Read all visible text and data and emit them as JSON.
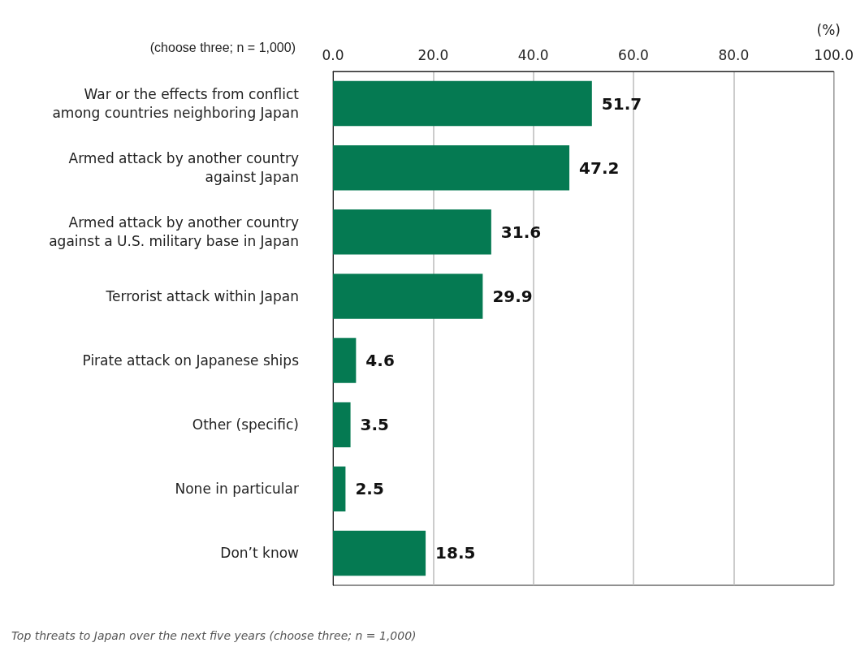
{
  "chart_data": {
    "type": "bar",
    "orientation": "horizontal",
    "categories": [
      "War or the effects from conflict\namong countries neighboring Japan",
      "Armed attack by another country\nagainst Japan",
      "Armed attack by another country\nagainst a U.S. military base in Japan",
      "Terrorist attack within Japan",
      "Pirate attack on Japanese ships",
      "Other (specific)",
      "None in particular",
      "Don’t know"
    ],
    "values": [
      51.7,
      47.2,
      31.6,
      29.9,
      4.6,
      3.5,
      2.5,
      18.5
    ],
    "color": "#057a52",
    "xlim": [
      0,
      100
    ],
    "xticks": [
      {
        "value": 0,
        "label": "0.0"
      },
      {
        "value": 20,
        "label": "20.0"
      },
      {
        "value": 40,
        "label": "40.0"
      },
      {
        "value": 60,
        "label": "60.0"
      },
      {
        "value": 80,
        "label": "80.0"
      },
      {
        "value": 100,
        "label": "100.0"
      }
    ],
    "xlabel": "(%)",
    "grid": "x",
    "data_labels": true,
    "annotations": [
      "(choose three; n = 1,000)",
      "Top threats to Japan over the next five years (choose three; n = 1,000)"
    ]
  }
}
